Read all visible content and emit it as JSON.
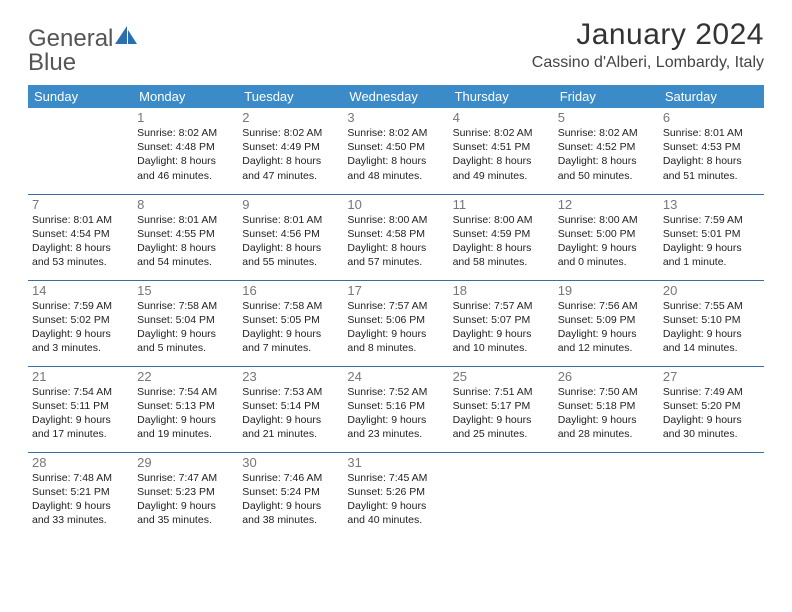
{
  "logo": {
    "word": "General",
    "blue_word": "Blue"
  },
  "title": "January 2024",
  "location": "Cassino d'Alberi, Lombardy, Italy",
  "colors": {
    "header_bg": "#3b8bc8",
    "header_text": "#ffffff",
    "row_border": "#3b6ea0",
    "daynum": "#777777",
    "body_text": "#222222",
    "logo_gray": "#555555",
    "logo_blue": "#2a7fbf",
    "logo_icon": "#2a6fb0"
  },
  "weekdays": [
    "Sunday",
    "Monday",
    "Tuesday",
    "Wednesday",
    "Thursday",
    "Friday",
    "Saturday"
  ],
  "start_offset": 1,
  "days": [
    {
      "n": 1,
      "sr": "8:02 AM",
      "ss": "4:48 PM",
      "dl": "8 hours and 46 minutes."
    },
    {
      "n": 2,
      "sr": "8:02 AM",
      "ss": "4:49 PM",
      "dl": "8 hours and 47 minutes."
    },
    {
      "n": 3,
      "sr": "8:02 AM",
      "ss": "4:50 PM",
      "dl": "8 hours and 48 minutes."
    },
    {
      "n": 4,
      "sr": "8:02 AM",
      "ss": "4:51 PM",
      "dl": "8 hours and 49 minutes."
    },
    {
      "n": 5,
      "sr": "8:02 AM",
      "ss": "4:52 PM",
      "dl": "8 hours and 50 minutes."
    },
    {
      "n": 6,
      "sr": "8:01 AM",
      "ss": "4:53 PM",
      "dl": "8 hours and 51 minutes."
    },
    {
      "n": 7,
      "sr": "8:01 AM",
      "ss": "4:54 PM",
      "dl": "8 hours and 53 minutes."
    },
    {
      "n": 8,
      "sr": "8:01 AM",
      "ss": "4:55 PM",
      "dl": "8 hours and 54 minutes."
    },
    {
      "n": 9,
      "sr": "8:01 AM",
      "ss": "4:56 PM",
      "dl": "8 hours and 55 minutes."
    },
    {
      "n": 10,
      "sr": "8:00 AM",
      "ss": "4:58 PM",
      "dl": "8 hours and 57 minutes."
    },
    {
      "n": 11,
      "sr": "8:00 AM",
      "ss": "4:59 PM",
      "dl": "8 hours and 58 minutes."
    },
    {
      "n": 12,
      "sr": "8:00 AM",
      "ss": "5:00 PM",
      "dl": "9 hours and 0 minutes."
    },
    {
      "n": 13,
      "sr": "7:59 AM",
      "ss": "5:01 PM",
      "dl": "9 hours and 1 minute."
    },
    {
      "n": 14,
      "sr": "7:59 AM",
      "ss": "5:02 PM",
      "dl": "9 hours and 3 minutes."
    },
    {
      "n": 15,
      "sr": "7:58 AM",
      "ss": "5:04 PM",
      "dl": "9 hours and 5 minutes."
    },
    {
      "n": 16,
      "sr": "7:58 AM",
      "ss": "5:05 PM",
      "dl": "9 hours and 7 minutes."
    },
    {
      "n": 17,
      "sr": "7:57 AM",
      "ss": "5:06 PM",
      "dl": "9 hours and 8 minutes."
    },
    {
      "n": 18,
      "sr": "7:57 AM",
      "ss": "5:07 PM",
      "dl": "9 hours and 10 minutes."
    },
    {
      "n": 19,
      "sr": "7:56 AM",
      "ss": "5:09 PM",
      "dl": "9 hours and 12 minutes."
    },
    {
      "n": 20,
      "sr": "7:55 AM",
      "ss": "5:10 PM",
      "dl": "9 hours and 14 minutes."
    },
    {
      "n": 21,
      "sr": "7:54 AM",
      "ss": "5:11 PM",
      "dl": "9 hours and 17 minutes."
    },
    {
      "n": 22,
      "sr": "7:54 AM",
      "ss": "5:13 PM",
      "dl": "9 hours and 19 minutes."
    },
    {
      "n": 23,
      "sr": "7:53 AM",
      "ss": "5:14 PM",
      "dl": "9 hours and 21 minutes."
    },
    {
      "n": 24,
      "sr": "7:52 AM",
      "ss": "5:16 PM",
      "dl": "9 hours and 23 minutes."
    },
    {
      "n": 25,
      "sr": "7:51 AM",
      "ss": "5:17 PM",
      "dl": "9 hours and 25 minutes."
    },
    {
      "n": 26,
      "sr": "7:50 AM",
      "ss": "5:18 PM",
      "dl": "9 hours and 28 minutes."
    },
    {
      "n": 27,
      "sr": "7:49 AM",
      "ss": "5:20 PM",
      "dl": "9 hours and 30 minutes."
    },
    {
      "n": 28,
      "sr": "7:48 AM",
      "ss": "5:21 PM",
      "dl": "9 hours and 33 minutes."
    },
    {
      "n": 29,
      "sr": "7:47 AM",
      "ss": "5:23 PM",
      "dl": "9 hours and 35 minutes."
    },
    {
      "n": 30,
      "sr": "7:46 AM",
      "ss": "5:24 PM",
      "dl": "9 hours and 38 minutes."
    },
    {
      "n": 31,
      "sr": "7:45 AM",
      "ss": "5:26 PM",
      "dl": "9 hours and 40 minutes."
    }
  ],
  "labels": {
    "sunrise": "Sunrise:",
    "sunset": "Sunset:",
    "daylight": "Daylight:"
  }
}
